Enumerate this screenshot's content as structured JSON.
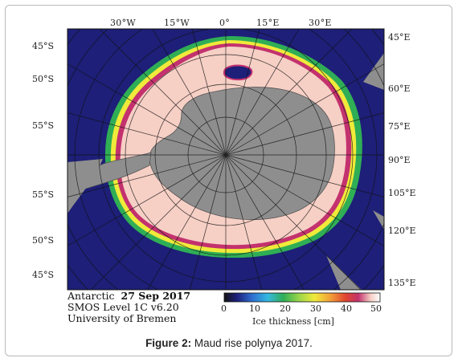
{
  "figure": {
    "caption_label": "Figure 2:",
    "caption_text": "Maud rise polynya 2017."
  },
  "map": {
    "projection": "south polar stereographic",
    "colors": {
      "ocean": "#1d1f78",
      "land": "#8e8e8e",
      "thick_ice": "#f6cfc5",
      "ice_margin_outer": "#2fae55",
      "ice_margin_mid": "#f0ea3a",
      "ice_margin_inner": "#c3326e",
      "grid": "#111111"
    },
    "top_longitudes": [
      "30°W",
      "15°W",
      "0°",
      "15°E",
      "30°E"
    ],
    "left_latitudes": [
      "45°S",
      "50°S",
      "55°S",
      "55°S",
      "50°S",
      "45°S"
    ],
    "right_longitudes": [
      "45°E",
      "60°E",
      "75°E",
      "90°E",
      "105°E",
      "120°E",
      "135°E"
    ]
  },
  "info": {
    "region": "Antarctic",
    "date": "27 Sep 2017",
    "product": "SMOS Level 1C v6.20",
    "institution": "University of Bremen"
  },
  "colorbar": {
    "ticks": [
      "0",
      "10",
      "20",
      "30",
      "40",
      "50"
    ],
    "title": "Ice thickness [cm]",
    "colors": [
      "#141414",
      "#1d1f78",
      "#2f6fd0",
      "#35b8e0",
      "#2fae55",
      "#9ad64a",
      "#f0ea3a",
      "#f3a13a",
      "#e0442f",
      "#c3326e",
      "#f6cfc5",
      "#ffffff"
    ]
  }
}
